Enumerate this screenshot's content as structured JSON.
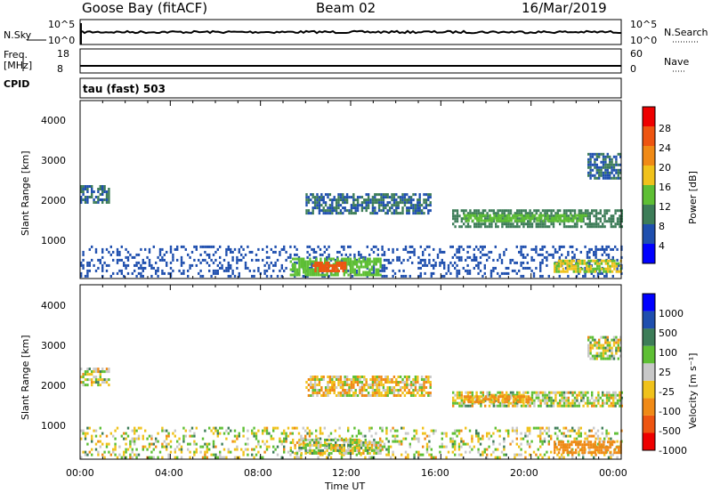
{
  "header": {
    "station": "Goose Bay (fitACF)",
    "beam": "Beam 02",
    "date": "16/Mar/2019"
  },
  "aux": {
    "nsky_label": "N.Sky",
    "nsky_ticks": [
      "10^5",
      "10^0"
    ],
    "nsearch_label": "N.Search",
    "nsearch_ticks": [
      "10^5",
      "10^0"
    ],
    "freq_label": "Freq.",
    "freq_unit": "[MHz]",
    "freq_ticks": [
      "18",
      "8"
    ],
    "nave_label": "Nave",
    "nave_ticks": [
      "60",
      "0"
    ],
    "cpid_label": "CPID",
    "cpid_text": "tau (fast) 503"
  },
  "axes": {
    "ylabel": "Slant Range [km]",
    "yticks": [
      "4000",
      "3000",
      "2000",
      "1000"
    ],
    "xticks": [
      "00:00",
      "04:00",
      "08:00",
      "12:00",
      "16:00",
      "20:00",
      "00:00"
    ],
    "xlabel": "Time UT"
  },
  "colors": {
    "power": [
      "#0000ff",
      "#1f4fae",
      "#3d7d58",
      "#5ebf34",
      "#f0c21b",
      "#f08a16",
      "#ee5511",
      "#ee0000"
    ],
    "velocity": [
      "#ee0000",
      "#ee5511",
      "#f08a16",
      "#f0c21b",
      "#c8c8c8",
      "#5ebf34",
      "#3d7d58",
      "#1f4fae",
      "#0000ff"
    ]
  },
  "power_scale": {
    "label": "Power [dB]",
    "ticks": [
      "28",
      "24",
      "20",
      "16",
      "12",
      "8",
      "4"
    ]
  },
  "velocity_scale": {
    "label": "Velocity [m s⁻¹]",
    "ticks": [
      "1000",
      "500",
      "100",
      "25",
      "-25",
      "-100",
      "-500",
      "-1000"
    ]
  },
  "chart_data": [
    {
      "type": "heatmap",
      "title": "Goose Bay (fitACF) Beam 02 16/Mar/2019",
      "xlabel": "Time UT",
      "ylabel": "Slant Range [km]",
      "xlim": [
        0,
        24
      ],
      "ylim": [
        180,
        4600
      ],
      "colorbar": "Power [dB]",
      "clim": [
        0,
        32
      ],
      "regions": [
        {
          "t0": 0.0,
          "t1": 1.3,
          "r0": 2050,
          "r1": 2500,
          "value": 8
        },
        {
          "t0": 0.0,
          "t1": 24.0,
          "r0": 250,
          "r1": 1000,
          "value": 6
        },
        {
          "t0": 9.3,
          "t1": 13.3,
          "r0": 300,
          "r1": 700,
          "value": 14
        },
        {
          "t0": 10.3,
          "t1": 11.8,
          "r0": 380,
          "r1": 600,
          "value": 26
        },
        {
          "t0": 10.0,
          "t1": 15.5,
          "r0": 1800,
          "r1": 2300,
          "value": 8
        },
        {
          "t0": 16.5,
          "t1": 24.0,
          "r0": 1500,
          "r1": 1900,
          "value": 10
        },
        {
          "t0": 17.0,
          "t1": 22.5,
          "r0": 1620,
          "r1": 1780,
          "value": 14
        },
        {
          "t0": 22.5,
          "t1": 24.0,
          "r0": 2700,
          "r1": 3300,
          "value": 8
        },
        {
          "t0": 21.0,
          "t1": 24.0,
          "r0": 350,
          "r1": 650,
          "value": 16
        }
      ]
    },
    {
      "type": "heatmap",
      "title": "",
      "xlabel": "Time UT",
      "ylabel": "Slant Range [km]",
      "xlim": [
        0,
        24
      ],
      "ylim": [
        180,
        4600
      ],
      "colorbar": "Velocity [m s⁻¹]",
      "clim": [
        -1000,
        1000
      ],
      "regions": [
        {
          "t0": 0.0,
          "t1": 1.3,
          "r0": 2050,
          "r1": 2500,
          "value": 0
        },
        {
          "t0": 0.0,
          "t1": 24.0,
          "r0": 250,
          "r1": 1000,
          "value": 0
        },
        {
          "t0": 9.3,
          "t1": 13.3,
          "r0": 300,
          "r1": 700,
          "value": 0
        },
        {
          "t0": 10.0,
          "t1": 15.5,
          "r0": 1800,
          "r1": 2300,
          "value": -50
        },
        {
          "t0": 16.5,
          "t1": 24.0,
          "r0": 1500,
          "r1": 1900,
          "value": 0
        },
        {
          "t0": 17.0,
          "t1": 20.0,
          "r0": 1600,
          "r1": 1800,
          "value": -150
        },
        {
          "t0": 22.5,
          "t1": 24.0,
          "r0": 2700,
          "r1": 3300,
          "value": 0
        },
        {
          "t0": 21.0,
          "t1": 24.0,
          "r0": 350,
          "r1": 650,
          "value": -300
        }
      ]
    }
  ]
}
